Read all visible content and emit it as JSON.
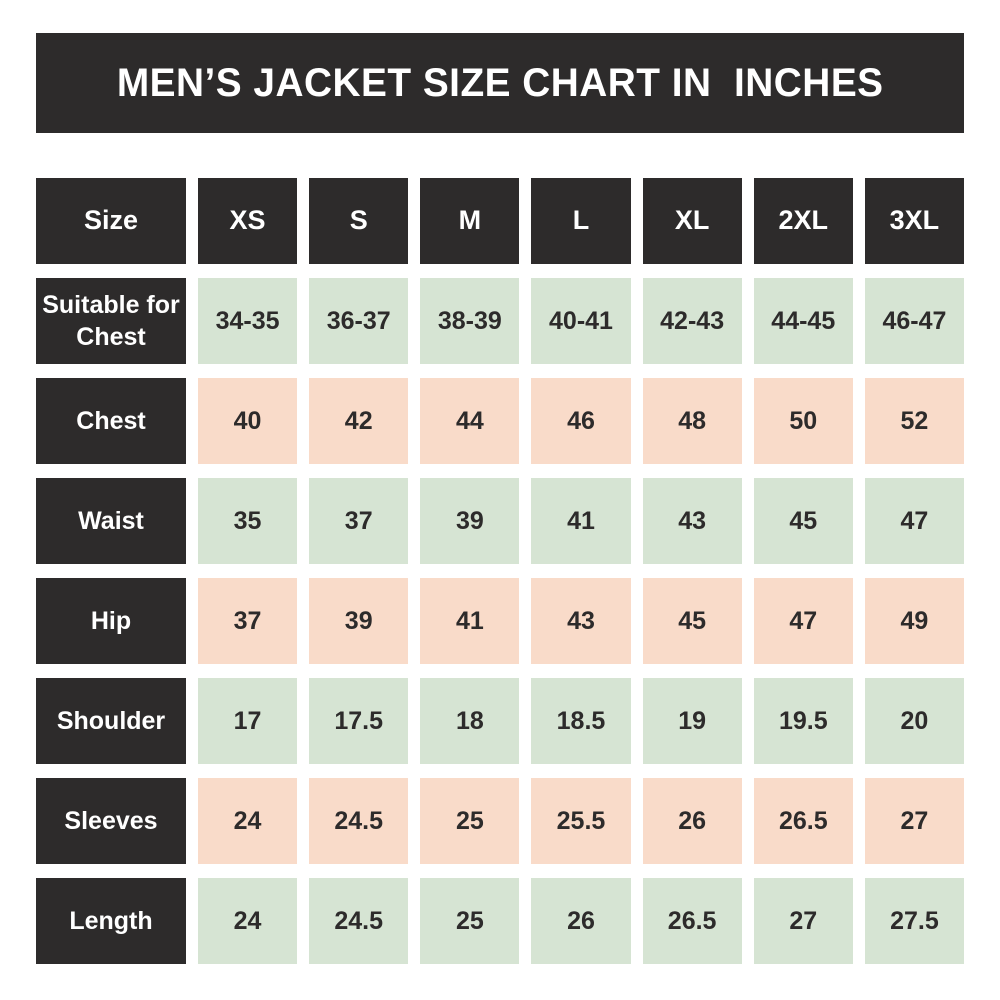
{
  "title": "MEN’S JACKET SIZE CHART IN  INCHES",
  "chart_data": {
    "type": "table",
    "title": "MEN’S JACKET SIZE CHART IN  INCHES",
    "units": "inches",
    "header": {
      "label": "Size",
      "sizes": [
        "XS",
        "S",
        "M",
        "L",
        "XL",
        "2XL",
        "3XL"
      ]
    },
    "rows": [
      {
        "label": "Suitable for Chest",
        "values": [
          "34-35",
          "36-37",
          "38-39",
          "40-41",
          "42-43",
          "44-45",
          "46-47"
        ]
      },
      {
        "label": "Chest",
        "values": [
          "40",
          "42",
          "44",
          "46",
          "48",
          "50",
          "52"
        ]
      },
      {
        "label": "Waist",
        "values": [
          "35",
          "37",
          "39",
          "41",
          "43",
          "45",
          "47"
        ]
      },
      {
        "label": "Hip",
        "values": [
          "37",
          "39",
          "41",
          "43",
          "45",
          "47",
          "49"
        ]
      },
      {
        "label": "Shoulder",
        "values": [
          "17",
          "17.5",
          "18",
          "18.5",
          "19",
          "19.5",
          "20"
        ]
      },
      {
        "label": "Sleeves",
        "values": [
          "24",
          "24.5",
          "25",
          "25.5",
          "26",
          "26.5",
          "27"
        ]
      },
      {
        "label": "Length",
        "values": [
          "24",
          "24.5",
          "25",
          "26",
          "26.5",
          "27",
          "27.5"
        ]
      }
    ]
  },
  "colors": {
    "dark_cell": "#2d2b2b",
    "green_cell": "#d6e4d3",
    "pink_cell": "#f9dbc9",
    "text_dark": "#2d2b2b",
    "text_light": "#ffffff",
    "background": "#ffffff"
  }
}
